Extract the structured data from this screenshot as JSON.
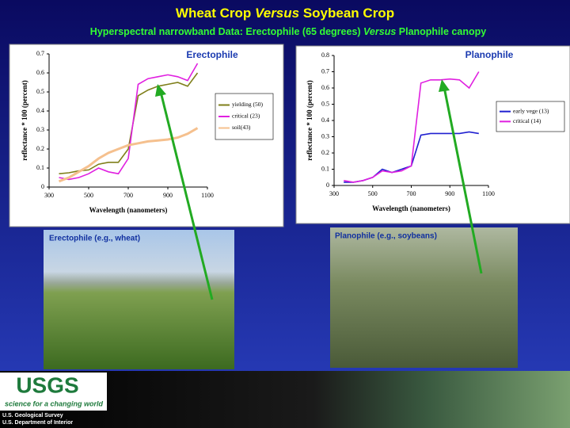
{
  "title": {
    "parts": [
      "Wheat Crop ",
      "Versus",
      " Soybean Crop"
    ]
  },
  "subtitle": {
    "parts": [
      "Hyperspectral narrowband Data: Erectophile (65 degrees) ",
      "Versus",
      " Planophile canopy"
    ]
  },
  "chart_data": [
    {
      "type": "line",
      "annotation": "Erectophile",
      "x_label": "Wavelength (nanometers)",
      "y_label": "reflectance * 100 (percent)",
      "xlim": [
        300,
        1100
      ],
      "xticks": [
        300,
        500,
        700,
        900,
        1100
      ],
      "ylim": [
        0,
        0.7
      ],
      "yticks": [
        0,
        0.1,
        0.2,
        0.3,
        0.4,
        0.5,
        0.6,
        0.7
      ],
      "x": [
        350,
        400,
        450,
        500,
        550,
        600,
        650,
        700,
        750,
        800,
        850,
        900,
        950,
        1000,
        1050
      ],
      "series": [
        {
          "name": "yielding (50)",
          "color": "#7f7f1a",
          "values": [
            0.07,
            0.075,
            0.085,
            0.09,
            0.12,
            0.13,
            0.13,
            0.2,
            0.48,
            0.51,
            0.53,
            0.54,
            0.55,
            0.53,
            0.6
          ]
        },
        {
          "name": "critical (23)",
          "color": "#e020e0",
          "values": [
            0.05,
            0.04,
            0.05,
            0.07,
            0.1,
            0.08,
            0.07,
            0.15,
            0.54,
            0.57,
            0.58,
            0.59,
            0.58,
            0.56,
            0.65
          ]
        },
        {
          "name": "soil(43)",
          "color": "#f5c08e",
          "values": [
            0.03,
            0.05,
            0.08,
            0.11,
            0.15,
            0.18,
            0.2,
            0.22,
            0.23,
            0.24,
            0.245,
            0.25,
            0.26,
            0.28,
            0.31
          ]
        }
      ]
    },
    {
      "type": "line",
      "annotation": "Planophile",
      "x_label": "Wavelength (nanometers)",
      "y_label": "reflectance * 100 (percent)",
      "xlim": [
        300,
        1100
      ],
      "xticks": [
        300,
        500,
        700,
        900,
        1100
      ],
      "ylim": [
        0,
        0.8
      ],
      "yticks": [
        0,
        0.1,
        0.2,
        0.3,
        0.4,
        0.5,
        0.6,
        0.7,
        0.8
      ],
      "x": [
        350,
        400,
        450,
        500,
        550,
        600,
        650,
        700,
        750,
        800,
        850,
        900,
        950,
        1000,
        1050
      ],
      "series": [
        {
          "name": "early vege (13)",
          "color": "#2020d0",
          "values": [
            0.02,
            0.02,
            0.03,
            0.05,
            0.1,
            0.08,
            0.1,
            0.12,
            0.31,
            0.32,
            0.32,
            0.32,
            0.32,
            0.33,
            0.32
          ]
        },
        {
          "name": "critical (14)",
          "color": "#e020e0",
          "values": [
            0.03,
            0.02,
            0.03,
            0.05,
            0.09,
            0.08,
            0.09,
            0.12,
            0.63,
            0.65,
            0.65,
            0.655,
            0.65,
            0.6,
            0.7
          ]
        }
      ]
    }
  ],
  "photos": [
    {
      "label": "Erectophile (e.g., wheat)"
    },
    {
      "label": "Planophile (e.g., soybeans)"
    }
  ],
  "footer": {
    "logo": "USGS",
    "tagline": "science for a changing world",
    "lines": [
      "U.S. Geological Survey",
      "U.S. Department of Interior"
    ]
  }
}
